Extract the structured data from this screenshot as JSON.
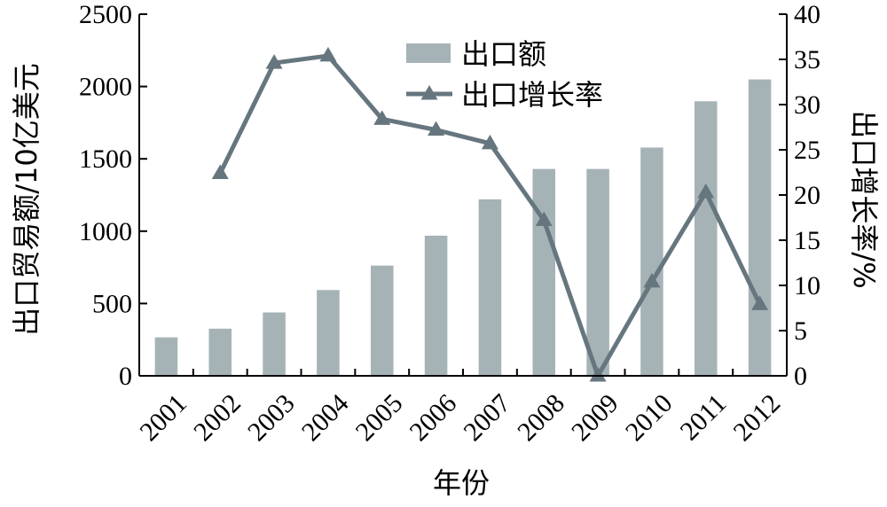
{
  "chart_data": {
    "type": "bar+line",
    "categories": [
      "2001",
      "2002",
      "2003",
      "2004",
      "2005",
      "2006",
      "2007",
      "2008",
      "2009",
      "2010",
      "2011",
      "2012"
    ],
    "series": [
      {
        "name": "出口额",
        "type": "bar",
        "axis": "left",
        "values": [
          266,
          326,
          438,
          593,
          762,
          969,
          1220,
          1430,
          1430,
          1578,
          1898,
          2049
        ]
      },
      {
        "name": "出口增长率",
        "type": "line",
        "axis": "right",
        "values": [
          null,
          22.4,
          34.6,
          35.4,
          28.4,
          27.2,
          25.7,
          17.2,
          0,
          10.4,
          20.3,
          7.9
        ]
      }
    ],
    "xlabel": "年份",
    "ylabel": "出口贸易额/10亿美元",
    "y2label": "出口增长率/%",
    "ylim": [
      0,
      2500
    ],
    "yticks": [
      0,
      500,
      1000,
      1500,
      2000,
      2500
    ],
    "y2lim": [
      0,
      40
    ],
    "y2ticks": [
      0,
      5,
      10,
      15,
      20,
      25,
      30,
      35,
      40
    ],
    "legend_position": "top-center",
    "colors": {
      "bar": "#a6b3b6",
      "line": "#66767e"
    }
  }
}
